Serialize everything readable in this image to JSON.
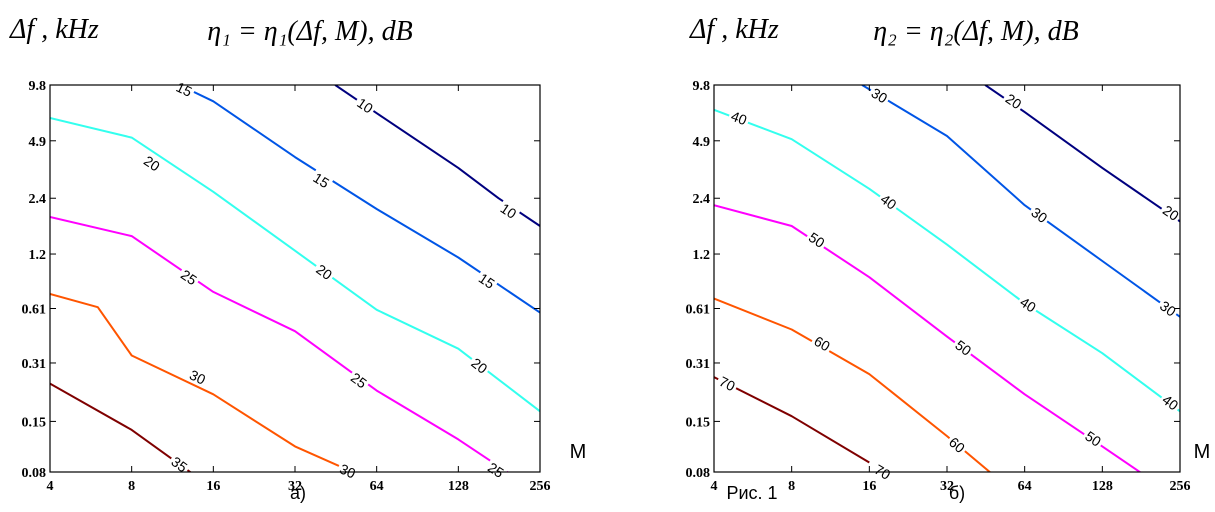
{
  "figure_caption": "Рис. 1",
  "chart_data": [
    {
      "type": "contour",
      "panel_label": "а)",
      "title": "η₁ = η₁(Δf, M), dB",
      "ylabel": "Δf , kHz",
      "xlabel": "M",
      "x_scale": "log2",
      "y_scale": "log2",
      "xlim": [
        4,
        256
      ],
      "ylim": [
        0.08,
        9.8
      ],
      "x_ticks": [
        4,
        8,
        16,
        32,
        64,
        128,
        256
      ],
      "x_tick_labels": [
        "4",
        "8",
        "16",
        "32",
        "64",
        "128",
        "256"
      ],
      "y_ticks": [
        0.08,
        0.15,
        0.31,
        0.61,
        1.2,
        2.4,
        4.9,
        9.8
      ],
      "y_tick_labels": [
        "0.08",
        "0.15",
        "0.31",
        "0.61",
        "1.2",
        "2.4",
        "4.9",
        "9.8"
      ],
      "grid": false,
      "contours": [
        {
          "level": "10",
          "color": "#00007f",
          "points": [
            [
              45,
              9.8
            ],
            [
              64,
              6.9
            ],
            [
              128,
              3.5
            ],
            [
              180,
              2.4
            ],
            [
              256,
              1.7
            ]
          ],
          "labels": [
            [
              58,
              7.6
            ],
            [
              196,
              2.05
            ]
          ]
        },
        {
          "level": "15",
          "color": "#0055e6",
          "points": [
            [
              12,
              9.8
            ],
            [
              16,
              8.0
            ],
            [
              32,
              4.0
            ],
            [
              64,
              2.1
            ],
            [
              128,
              1.15
            ],
            [
              256,
              0.58
            ]
          ],
          "labels": [
            [
              12.5,
              9.3
            ],
            [
              40,
              3.0
            ],
            [
              163,
              0.86
            ]
          ]
        },
        {
          "level": "20",
          "color": "#33ffee",
          "points": [
            [
              4,
              6.5
            ],
            [
              8,
              5.1
            ],
            [
              16,
              2.6
            ],
            [
              32,
              1.25
            ],
            [
              64,
              0.6
            ],
            [
              128,
              0.37
            ],
            [
              256,
              0.17
            ]
          ],
          "labels": [
            [
              9.5,
              3.7
            ],
            [
              41,
              0.96
            ],
            [
              153,
              0.3
            ]
          ]
        },
        {
          "level": "25",
          "color": "#ff00ff",
          "points": [
            [
              4,
              1.9
            ],
            [
              8,
              1.5
            ],
            [
              16,
              0.75
            ],
            [
              32,
              0.46
            ],
            [
              64,
              0.22
            ],
            [
              128,
              0.12
            ],
            [
              256,
              0.061
            ]
          ],
          "labels": [
            [
              13,
              0.9
            ],
            [
              55,
              0.25
            ],
            [
              176,
              0.082
            ]
          ]
        },
        {
          "level": "30",
          "color": "#ff5500",
          "points": [
            [
              4,
              0.73
            ],
            [
              6,
              0.62
            ],
            [
              8,
              0.34
            ],
            [
              16,
              0.21
            ],
            [
              32,
              0.11
            ],
            [
              64,
              0.07
            ]
          ],
          "labels": [
            [
              14,
              0.26
            ],
            [
              50,
              0.081
            ]
          ]
        },
        {
          "level": "35",
          "color": "#7f0000",
          "points": [
            [
              4,
              0.24
            ],
            [
              8,
              0.135
            ],
            [
              16,
              0.065
            ]
          ],
          "labels": [
            [
              12,
              0.088
            ]
          ]
        }
      ]
    },
    {
      "type": "contour",
      "panel_label": "б)",
      "title": "η₂ = η₂(Δf, M), dB",
      "ylabel": "Δf , kHz",
      "xlabel": "M",
      "x_scale": "log2",
      "y_scale": "log2",
      "xlim": [
        4,
        256
      ],
      "ylim": [
        0.08,
        9.8
      ],
      "x_ticks": [
        4,
        8,
        16,
        32,
        64,
        128,
        256
      ],
      "x_tick_labels": [
        "4",
        "8",
        "16",
        "32",
        "64",
        "128",
        "256"
      ],
      "y_ticks": [
        0.08,
        0.15,
        0.31,
        0.61,
        1.2,
        2.4,
        4.9,
        9.8
      ],
      "y_tick_labels": [
        "0.08",
        "0.15",
        "0.31",
        "0.61",
        "1.2",
        "2.4",
        "4.9",
        "9.8"
      ],
      "grid": false,
      "contours": [
        {
          "level": "20",
          "color": "#00007f",
          "points": [
            [
              45,
              9.8
            ],
            [
              64,
              7.0
            ],
            [
              128,
              3.5
            ],
            [
              256,
              1.8
            ]
          ],
          "labels": [
            [
              58,
              8.0
            ],
            [
              236,
              2.0
            ]
          ]
        },
        {
          "level": "30",
          "color": "#0055e6",
          "points": [
            [
              15,
              9.8
            ],
            [
              32,
              5.2
            ],
            [
              64,
              2.2
            ],
            [
              128,
              1.1
            ],
            [
              256,
              0.55
            ]
          ],
          "labels": [
            [
              17.5,
              8.6
            ],
            [
              73,
              1.95
            ],
            [
              230,
              0.61
            ]
          ]
        },
        {
          "level": "40",
          "color": "#33ffee",
          "points": [
            [
              4,
              7.2
            ],
            [
              8,
              5.0
            ],
            [
              16,
              2.7
            ],
            [
              32,
              1.35
            ],
            [
              64,
              0.65
            ],
            [
              128,
              0.35
            ],
            [
              256,
              0.17
            ]
          ],
          "labels": [
            [
              5,
              6.5
            ],
            [
              19,
              2.3
            ],
            [
              66,
              0.64
            ],
            [
              235,
              0.19
            ]
          ]
        },
        {
          "level": "50",
          "color": "#ff00ff",
          "points": [
            [
              4,
              2.2
            ],
            [
              8,
              1.7
            ],
            [
              16,
              0.9
            ],
            [
              32,
              0.43
            ],
            [
              64,
              0.21
            ],
            [
              128,
              0.11
            ],
            [
              200,
              0.072
            ]
          ],
          "labels": [
            [
              10,
              1.43
            ],
            [
              37,
              0.375
            ],
            [
              118,
              0.121
            ]
          ]
        },
        {
          "level": "60",
          "color": "#ff5500",
          "points": [
            [
              4,
              0.69
            ],
            [
              8,
              0.47
            ],
            [
              16,
              0.27
            ],
            [
              32,
              0.125
            ],
            [
              60,
              0.06
            ]
          ],
          "labels": [
            [
              10.5,
              0.395
            ],
            [
              35,
              0.112
            ]
          ]
        },
        {
          "level": "70",
          "color": "#7f0000",
          "points": [
            [
              4,
              0.26
            ],
            [
              8,
              0.16
            ],
            [
              16,
              0.09
            ]
          ],
          "labels": [
            [
              4.5,
              0.24
            ],
            [
              18,
              0.08
            ]
          ]
        }
      ]
    }
  ]
}
